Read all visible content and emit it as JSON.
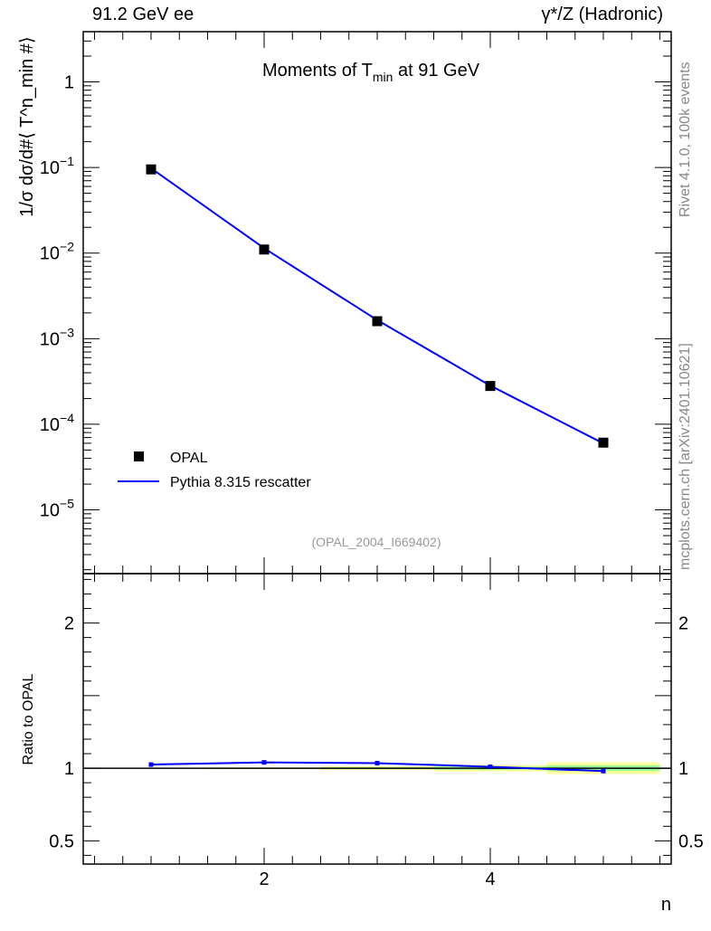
{
  "header": {
    "left": "91.2 GeV ee",
    "right": "γ*/Z (Hadronic)"
  },
  "side": {
    "rivet": "Rivet 4.1.0,  100k events",
    "mcplots": "mcplots.cern.ch [arXiv:2401.10621]"
  },
  "chart_data": [
    {
      "type": "line",
      "title": "Moments of T_min at 91 GeV",
      "title_main": "Moments of T",
      "title_sub": "min",
      "title_tail": " at 91 GeV",
      "ylabel": "1/σ  dσ/d#⟨ T^n_min #⟩",
      "yscale": "log",
      "xlim": [
        0.4,
        5.6
      ],
      "ylim": [
        1.8e-06,
        3.86
      ],
      "yticks": [
        {
          "v": 1,
          "base": "1",
          "exp": ""
        },
        {
          "v": 0.1,
          "base": "10",
          "exp": "−1"
        },
        {
          "v": 0.01,
          "base": "10",
          "exp": "−2"
        },
        {
          "v": 0.001,
          "base": "10",
          "exp": "−3"
        },
        {
          "v": 0.0001,
          "base": "10",
          "exp": "−4"
        },
        {
          "v": 1e-05,
          "base": "10",
          "exp": "−5"
        }
      ],
      "x": [
        1,
        2,
        3,
        4,
        5
      ],
      "series": [
        {
          "name": "OPAL",
          "values": [
            0.095,
            0.011,
            0.0016,
            0.00028,
            6.1e-05
          ],
          "color": "#000000",
          "style": "marker"
        },
        {
          "name": "Pythia 8.315 rescatter",
          "values": [
            0.098,
            0.0114,
            0.00165,
            0.000283,
            5.98e-05
          ],
          "color": "#0000ff",
          "style": "line"
        }
      ],
      "annotation": "(OPAL_2004_I669402)"
    },
    {
      "type": "line",
      "ylabel": "Ratio to OPAL",
      "xlabel": "n",
      "xlim": [
        0.4,
        5.6
      ],
      "ylim": [
        0.34,
        2.34
      ],
      "yticks": [
        0.5,
        1,
        2
      ],
      "ytick_labels": [
        "0.5",
        "1",
        "2"
      ],
      "xticks": [
        2,
        4
      ],
      "xtick_labels": [
        "2",
        "4"
      ],
      "x": [
        1,
        2,
        3,
        4,
        5
      ],
      "ratio": [
        1.025,
        1.04,
        1.035,
        1.01,
        0.98
      ],
      "ratio_err": [
        0.003,
        0.004,
        0.004,
        0.006,
        0.012
      ],
      "band_yellow": [
        0.003,
        0.005,
        0.012,
        0.022,
        0.04
      ],
      "band_green": [
        0.002,
        0.003,
        0.006,
        0.011,
        0.02
      ],
      "colors": {
        "line": "#0000ff",
        "ref": "#000000",
        "yellow": "#ffff99",
        "green": "#99ff99"
      }
    }
  ]
}
